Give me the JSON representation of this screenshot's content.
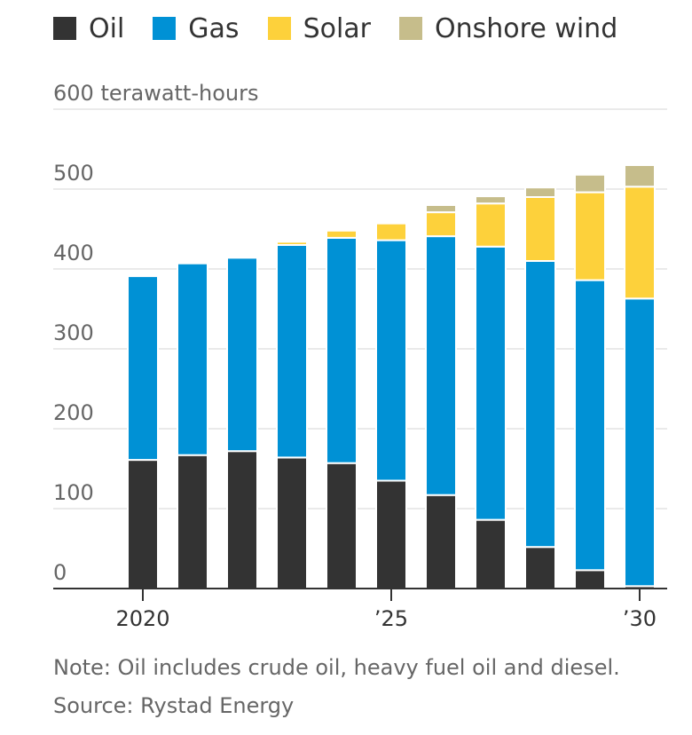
{
  "chart_data": {
    "type": "bar",
    "stacked": true,
    "ylabel": "terawatt-hours",
    "ylim": [
      0,
      600
    ],
    "yticks": [
      0,
      100,
      200,
      300,
      400,
      500,
      600
    ],
    "ytick_labels": [
      "0",
      "100",
      "200",
      "300",
      "400",
      "500",
      "600"
    ],
    "x": [
      2020,
      2021,
      2022,
      2023,
      2024,
      2025,
      2026,
      2027,
      2028,
      2029,
      2030
    ],
    "xtick_labels": [
      {
        "x": 2020,
        "label": "2020"
      },
      {
        "x": 2025,
        "label": "’25"
      },
      {
        "x": 2030,
        "label": "’30"
      }
    ],
    "series": [
      {
        "name": "Oil",
        "color": "#333333",
        "values": [
          161,
          167,
          172,
          164,
          157,
          135,
          117,
          86,
          52,
          23,
          3
        ]
      },
      {
        "name": "Gas",
        "color": "#0091d5",
        "values": [
          230,
          240,
          242,
          266,
          282,
          301,
          324,
          342,
          358,
          363,
          360
        ]
      },
      {
        "name": "Solar",
        "color": "#fdd13b",
        "values": [
          0,
          0,
          0,
          4,
          9,
          21,
          30,
          54,
          80,
          110,
          140
        ]
      },
      {
        "name": "Onshore wind",
        "color": "#c6bd8b",
        "values": [
          0,
          0,
          0,
          0,
          0,
          0,
          9,
          9,
          12,
          22,
          27
        ]
      }
    ],
    "grid": true,
    "legend": "top-left"
  },
  "notes": {
    "note": "Note: Oil includes crude oil, heavy fuel oil and diesel.",
    "source": "Source: Rystad Energy"
  }
}
